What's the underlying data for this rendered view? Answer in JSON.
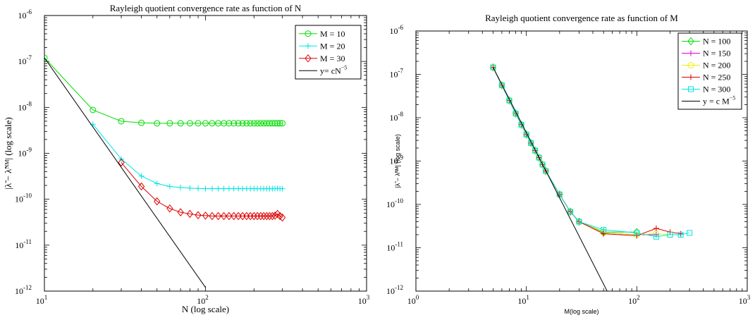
{
  "chart_data": [
    {
      "type": "line",
      "title": "Rayleigh quotient convergence rate as function of N",
      "xlabel": "N (log scale)",
      "ylabel": "|λ̃ − λ̃ᴺᴹ| (log scale)",
      "xscale": "log",
      "yscale": "log",
      "xlim": [
        10,
        1000
      ],
      "ylim": [
        1e-12,
        1e-06
      ],
      "legend_position": "top-right",
      "x_ticks": [
        {
          "value": 10,
          "base": "10",
          "exp": "1"
        },
        {
          "value": 100,
          "base": "10",
          "exp": "2"
        },
        {
          "value": 1000,
          "base": "10",
          "exp": "3"
        }
      ],
      "y_ticks": [
        {
          "value": 1e-12,
          "base": "10",
          "exp": "-12"
        },
        {
          "value": 1e-11,
          "base": "10",
          "exp": "-11"
        },
        {
          "value": 1e-10,
          "base": "10",
          "exp": "-10"
        },
        {
          "value": 1e-09,
          "base": "10",
          "exp": "-9"
        },
        {
          "value": 1e-08,
          "base": "10",
          "exp": "-8"
        },
        {
          "value": 1e-07,
          "base": "10",
          "exp": "-7"
        },
        {
          "value": 1e-06,
          "base": "10",
          "exp": "-6"
        }
      ],
      "series": [
        {
          "name": "M = 10",
          "color": "#00dd00",
          "marker": "circle",
          "x": [
            10,
            20,
            30,
            40,
            50,
            60,
            70,
            80,
            90,
            100,
            110,
            120,
            130,
            140,
            150,
            160,
            170,
            180,
            190,
            200,
            210,
            220,
            230,
            240,
            250,
            260,
            270,
            280,
            290,
            300
          ],
          "y": [
            1.2e-07,
            8.8e-09,
            5e-09,
            4.6e-09,
            4.5e-09,
            4.5e-09,
            4.5e-09,
            4.5e-09,
            4.5e-09,
            4.5e-09,
            4.5e-09,
            4.5e-09,
            4.5e-09,
            4.5e-09,
            4.5e-09,
            4.5e-09,
            4.5e-09,
            4.5e-09,
            4.5e-09,
            4.5e-09,
            4.5e-09,
            4.5e-09,
            4.5e-09,
            4.5e-09,
            4.5e-09,
            4.5e-09,
            4.5e-09,
            4.5e-09,
            4.5e-09,
            4.5e-09
          ]
        },
        {
          "name": "M = 20",
          "color": "#00e5e5",
          "marker": "plus",
          "x": [
            20,
            30,
            40,
            50,
            60,
            70,
            80,
            90,
            100,
            110,
            120,
            130,
            140,
            150,
            160,
            170,
            180,
            190,
            200,
            210,
            220,
            230,
            240,
            250,
            260,
            270,
            280,
            290,
            300
          ],
          "y": [
            4.3e-09,
            7.5e-10,
            3.2e-10,
            2.2e-10,
            1.9e-10,
            1.8e-10,
            1.75e-10,
            1.72e-10,
            1.7e-10,
            1.7e-10,
            1.7e-10,
            1.7e-10,
            1.7e-10,
            1.7e-10,
            1.7e-10,
            1.7e-10,
            1.7e-10,
            1.7e-10,
            1.7e-10,
            1.7e-10,
            1.7e-10,
            1.7e-10,
            1.7e-10,
            1.7e-10,
            1.7e-10,
            1.7e-10,
            1.72e-10,
            1.7e-10,
            1.7e-10
          ]
        },
        {
          "name": "M = 30",
          "color": "#dd0000",
          "marker": "diamond",
          "x": [
            30,
            40,
            50,
            60,
            70,
            80,
            90,
            100,
            110,
            120,
            130,
            140,
            150,
            160,
            170,
            180,
            190,
            200,
            210,
            220,
            230,
            240,
            250,
            260,
            270,
            280,
            290,
            300
          ],
          "y": [
            6.3e-10,
            1.9e-10,
            9e-11,
            6.3e-11,
            5.2e-11,
            4.8e-11,
            4.5e-11,
            4.4e-11,
            4.3e-11,
            4.3e-11,
            4.3e-11,
            4.3e-11,
            4.3e-11,
            4.3e-11,
            4.3e-11,
            4.3e-11,
            4.3e-11,
            4.3e-11,
            4.3e-11,
            4.3e-11,
            4.3e-11,
            4.3e-11,
            4.3e-11,
            4.3e-11,
            4.4e-11,
            4.8e-11,
            4.3e-11,
            4e-11
          ]
        },
        {
          "name": "y= cN",
          "name_exp": "−5",
          "color": "#000000",
          "marker": "none",
          "x": [
            10,
            100
          ],
          "y": [
            1.2e-07,
            1.2e-12
          ]
        }
      ]
    },
    {
      "type": "line",
      "title": "Rayleigh quotient convergence rate as function of M",
      "xlabel": "M(log scale)",
      "ylabel": "|λ̃ − λ̃ᴺᴹ| (log scale)",
      "xscale": "log",
      "yscale": "log",
      "xlim": [
        1,
        1000
      ],
      "ylim": [
        1e-12,
        1e-06
      ],
      "legend_position": "top-right",
      "x_ticks": [
        {
          "value": 1,
          "base": "10",
          "exp": "0"
        },
        {
          "value": 10,
          "base": "10",
          "exp": "1"
        },
        {
          "value": 100,
          "base": "10",
          "exp": "2"
        },
        {
          "value": 1000,
          "base": "10",
          "exp": "3"
        }
      ],
      "y_ticks": [
        {
          "value": 1e-12,
          "base": "10",
          "exp": "-12"
        },
        {
          "value": 1e-11,
          "base": "10",
          "exp": "-11"
        },
        {
          "value": 1e-10,
          "base": "10",
          "exp": "-10"
        },
        {
          "value": 1e-09,
          "base": "10",
          "exp": "-9"
        },
        {
          "value": 1e-08,
          "base": "10",
          "exp": "-8"
        },
        {
          "value": 1e-07,
          "base": "10",
          "exp": "-7"
        },
        {
          "value": 1e-06,
          "base": "10",
          "exp": "-6"
        }
      ],
      "series": [
        {
          "name": "N = 100",
          "color": "#00dd00",
          "marker": "diamond",
          "x": [
            5,
            6,
            7,
            8,
            9,
            10,
            11,
            12,
            13,
            14,
            15,
            20,
            25,
            30,
            50,
            100
          ],
          "y": [
            1.45e-07,
            5.6e-08,
            2.5e-08,
            1.25e-08,
            6.9e-09,
            4.1e-09,
            2.6e-09,
            1.75e-09,
            1.2e-09,
            8.3e-10,
            5.9e-10,
            1.7e-10,
            6.8e-11,
            4e-11,
            2.3e-11,
            2.3e-11
          ]
        },
        {
          "name": "N = 150",
          "color": "#dd00dd",
          "marker": "plus",
          "x": [
            5,
            6,
            7,
            8,
            9,
            10,
            11,
            12,
            13,
            14,
            15,
            20,
            25,
            30,
            50,
            100,
            150
          ],
          "y": [
            1.45e-07,
            5.6e-08,
            2.5e-08,
            1.25e-08,
            6.9e-09,
            4.1e-09,
            2.6e-09,
            1.75e-09,
            1.2e-09,
            8.3e-10,
            5.9e-10,
            1.7e-10,
            6.8e-11,
            4e-11,
            2.2e-11,
            2e-11,
            2e-11
          ]
        },
        {
          "name": "N = 200",
          "color": "#eeee00",
          "marker": "circle",
          "x": [
            5,
            6,
            7,
            8,
            9,
            10,
            11,
            12,
            13,
            14,
            15,
            20,
            25,
            30,
            50,
            100,
            150,
            200
          ],
          "y": [
            1.45e-07,
            5.6e-08,
            2.5e-08,
            1.25e-08,
            6.9e-09,
            4.1e-09,
            2.6e-09,
            1.75e-09,
            1.2e-09,
            8.3e-10,
            5.9e-10,
            1.7e-10,
            6.8e-11,
            4e-11,
            2.2e-11,
            2e-11,
            2.1e-11,
            2e-11
          ]
        },
        {
          "name": "N = 250",
          "color": "#dd0000",
          "marker": "plus",
          "x": [
            5,
            6,
            7,
            8,
            9,
            10,
            11,
            12,
            13,
            14,
            15,
            20,
            25,
            30,
            50,
            100,
            150,
            200,
            250
          ],
          "y": [
            1.45e-07,
            5.6e-08,
            2.5e-08,
            1.25e-08,
            6.9e-09,
            4.1e-09,
            2.6e-09,
            1.75e-09,
            1.2e-09,
            8.3e-10,
            5.9e-10,
            1.7e-10,
            6.8e-11,
            4e-11,
            2.1e-11,
            1.9e-11,
            2.8e-11,
            2.3e-11,
            2.1e-11
          ]
        },
        {
          "name": "N = 300",
          "color": "#00e5e5",
          "marker": "square",
          "x": [
            5,
            6,
            7,
            8,
            9,
            10,
            11,
            12,
            13,
            14,
            15,
            20,
            25,
            30,
            50,
            100,
            150,
            200,
            250,
            300
          ],
          "y": [
            1.45e-07,
            5.6e-08,
            2.5e-08,
            1.25e-08,
            6.9e-09,
            4.1e-09,
            2.6e-09,
            1.75e-09,
            1.2e-09,
            8.3e-10,
            5.9e-10,
            1.7e-10,
            6.8e-11,
            4e-11,
            2.6e-11,
            2.2e-11,
            1.8e-11,
            2e-11,
            2e-11,
            2.2e-11
          ]
        },
        {
          "name": "y = c M",
          "name_exp": "−5",
          "color": "#000000",
          "marker": "none",
          "x": [
            5,
            55
          ],
          "y": [
            1.45e-07,
            9e-13
          ]
        }
      ]
    }
  ]
}
